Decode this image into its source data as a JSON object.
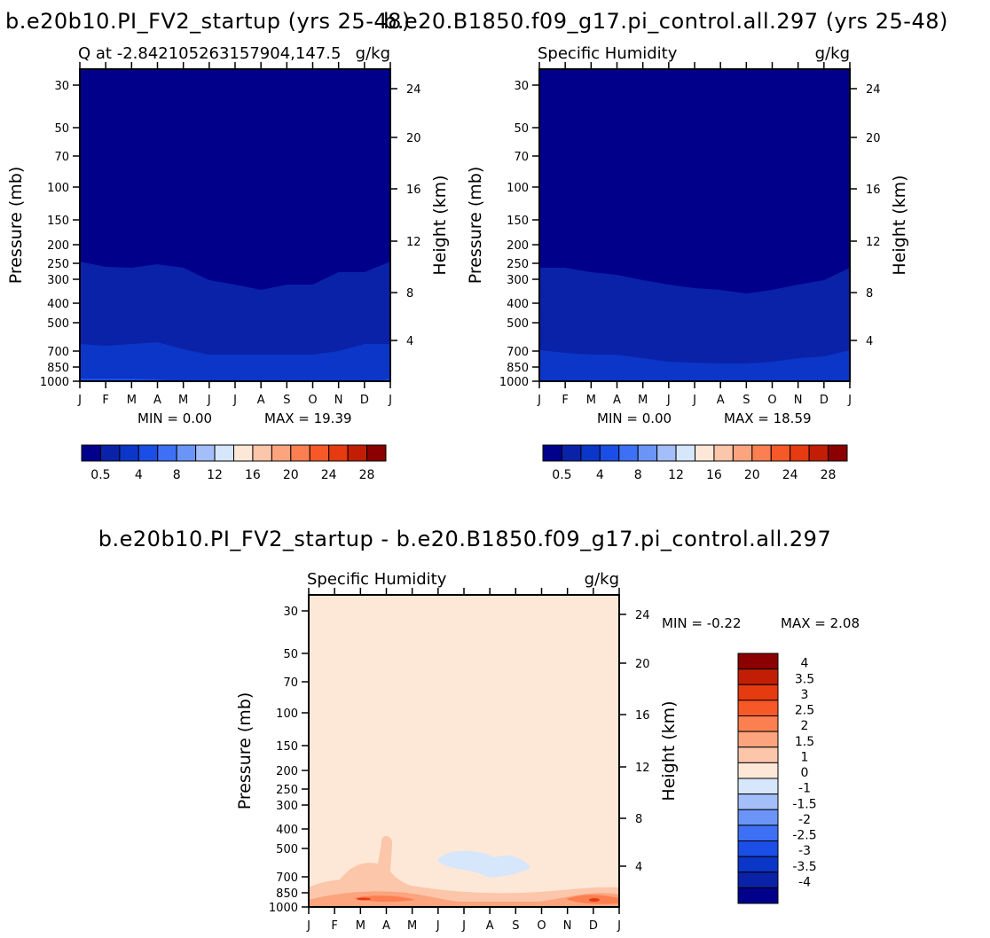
{
  "chart_data": [
    {
      "type": "contour",
      "figure_title": "b.e20b10.PI_FV2_startup (yrs 25-48)",
      "left_label": "Q at -2.842105263157904,147.5",
      "right_label": "g/kg",
      "ylabel": "Pressure (mb)",
      "ylabel_right": "Height (km)",
      "x_ticks": [
        "J",
        "F",
        "M",
        "A",
        "M",
        "J",
        "J",
        "A",
        "S",
        "O",
        "N",
        "D",
        "J"
      ],
      "y_ticks": [
        "30",
        "50",
        "70",
        "100",
        "150",
        "200",
        "250",
        "300",
        "400",
        "500",
        "700",
        "850",
        "1000"
      ],
      "y_ticks_right": [
        "24",
        "20",
        "16",
        "12",
        "8",
        "4"
      ],
      "min_text": "MIN =    0.00",
      "max_text": "MAX =   19.39",
      "colorbar_labels": [
        "0.5",
        "4",
        "8",
        "12",
        "16",
        "20",
        "24",
        "28"
      ],
      "colorbar_colors": [
        "#00008b",
        "#0a22a8",
        "#0b36c8",
        "#1b4ee6",
        "#3e70f5",
        "#6a95f7",
        "#a3bef8",
        "#d6e6fb",
        "#fde8d8",
        "#fcc6aa",
        "#fba47e",
        "#fb7f50",
        "#f75828",
        "#e63a10",
        "#c21e06",
        "#8b0000"
      ],
      "band_q": [
        0.5,
        1.5,
        2.5,
        4,
        6,
        8,
        10,
        12,
        14,
        16,
        18
      ],
      "band_top_y": [
        [
          295,
          301,
          302,
          298,
          302,
          316,
          321,
          327,
          321,
          321,
          307,
          307,
          295
        ],
        [
          388,
          390,
          388,
          386,
          394,
          400,
          400,
          400,
          400,
          400,
          396,
          388,
          388
        ],
        [
          427,
          427,
          427,
          428,
          431,
          437,
          436,
          438,
          438,
          438,
          436,
          433,
          427
        ],
        [
          477,
          477,
          474,
          470,
          483,
          491,
          493,
          495,
          495,
          495,
          491,
          483,
          477
        ],
        [
          514,
          512,
          511,
          506,
          523,
          527,
          531,
          532,
          532,
          532,
          526,
          518,
          514
        ],
        [
          558,
          558,
          555,
          553,
          567,
          575,
          578,
          580,
          580,
          580,
          574,
          562,
          558
        ],
        [
          603,
          601,
          599,
          599,
          612,
          618,
          620,
          620,
          620,
          620,
          614,
          606,
          603
        ],
        [
          646,
          645,
          644,
          643,
          650,
          656,
          658,
          658,
          658,
          658,
          654,
          648,
          646
        ],
        [
          695,
          695,
          695,
          695,
          698,
          700,
          701,
          701,
          701,
          700,
          698,
          696,
          695
        ],
        [
          723,
          722,
          721,
          721,
          722,
          723,
          724,
          724,
          724,
          724,
          723,
          723,
          723
        ],
        [
          745,
          745,
          745,
          745,
          745,
          745,
          746,
          746,
          746,
          745,
          745,
          745,
          745
        ]
      ]
    },
    {
      "type": "contour",
      "figure_title": "b.e20.B1850.f09_g17.pi_control.all.297 (yrs 25-48)",
      "left_label": "Specific Humidity",
      "right_label": "g/kg",
      "ylabel": "Pressure (mb)",
      "ylabel_right": "Height (km)",
      "x_ticks": [
        "J",
        "F",
        "M",
        "A",
        "M",
        "J",
        "J",
        "A",
        "S",
        "O",
        "N",
        "D",
        "J"
      ],
      "y_ticks": [
        "30",
        "50",
        "70",
        "100",
        "150",
        "200",
        "250",
        "300",
        "400",
        "500",
        "700",
        "850",
        "1000"
      ],
      "y_ticks_right": [
        "24",
        "20",
        "16",
        "12",
        "8",
        "4"
      ],
      "min_text": "MIN =    0.00",
      "max_text": "MAX =   18.59",
      "colorbar_labels": [
        "0.5",
        "4",
        "8",
        "12",
        "16",
        "20",
        "24",
        "28"
      ],
      "colorbar_colors": [
        "#00008b",
        "#0a22a8",
        "#0b36c8",
        "#1b4ee6",
        "#3e70f5",
        "#6a95f7",
        "#a3bef8",
        "#d6e6fb",
        "#fde8d8",
        "#fcc6aa",
        "#fba47e",
        "#fb7f50",
        "#f75828",
        "#e63a10",
        "#c21e06",
        "#8b0000"
      ],
      "band_q": [
        0.5,
        1.5,
        2.5,
        4,
        6,
        8,
        10,
        12,
        14,
        16,
        18
      ],
      "band_top_y": [
        [
          302,
          302,
          307,
          310,
          316,
          321,
          325,
          327,
          331,
          327,
          321,
          316,
          302
        ],
        [
          395,
          398,
          400,
          400,
          404,
          408,
          409,
          410,
          410,
          408,
          404,
          402,
          395
        ],
        [
          431,
          433,
          434,
          435,
          437,
          440,
          440,
          441,
          441,
          440,
          437,
          436,
          431
        ],
        [
          489,
          491,
          493,
          495,
          497,
          500,
          501,
          501,
          501,
          500,
          497,
          495,
          489
        ],
        [
          525,
          527,
          529,
          531,
          533,
          535,
          536,
          536,
          536,
          535,
          533,
          531,
          525
        ],
        [
          566,
          568,
          569,
          570,
          572,
          574,
          575,
          575,
          575,
          574,
          572,
          570,
          566
        ],
        [
          607,
          609,
          610,
          611,
          612,
          614,
          614,
          615,
          615,
          614,
          612,
          610,
          607
        ],
        [
          648,
          649,
          650,
          651,
          652,
          653,
          654,
          654,
          654,
          653,
          652,
          650,
          648
        ],
        [
          694,
          694,
          695,
          695,
          696,
          697,
          697,
          697,
          697,
          697,
          696,
          695,
          694
        ],
        [
          722,
          722,
          722,
          723,
          723,
          723,
          723,
          724,
          724,
          723,
          723,
          722,
          722
        ],
        [
          745,
          745,
          745,
          745,
          745,
          745,
          746,
          746,
          746,
          745,
          745,
          745,
          745
        ]
      ]
    },
    {
      "type": "contour",
      "figure_title": "b.e20b10.PI_FV2_startup - b.e20.B1850.f09_g17.pi_control.all.297",
      "left_label": "Specific Humidity",
      "right_label": "g/kg",
      "ylabel": "Pressure (mb)",
      "ylabel_right": "Height (km)",
      "x_ticks": [
        "J",
        "F",
        "M",
        "A",
        "M",
        "J",
        "J",
        "A",
        "S",
        "O",
        "N",
        "D",
        "J"
      ],
      "y_ticks": [
        "30",
        "50",
        "70",
        "100",
        "150",
        "200",
        "250",
        "300",
        "400",
        "500",
        "700",
        "850",
        "1000"
      ],
      "y_ticks_right": [
        "24",
        "20",
        "16",
        "12",
        "8",
        "4"
      ],
      "min_text": "MIN =   -0.22",
      "max_text": "MAX =    2.08",
      "colorbar_labels": [
        "4",
        "3.5",
        "3",
        "2.5",
        "2",
        "1.5",
        "1",
        "0",
        "-1",
        "-1.5",
        "-2",
        "-2.5",
        "-3",
        "-3.5",
        "-4"
      ],
      "colorbar_colors": [
        "#8b0000",
        "#c21e06",
        "#e63a10",
        "#f75828",
        "#fb7f50",
        "#fba47e",
        "#fcc6aa",
        "#fde8d8",
        "#d6e6fb",
        "#a3bef8",
        "#6a95f7",
        "#3e70f5",
        "#1b4ee6",
        "#0b36c8",
        "#0a22a8",
        "#00008b"
      ],
      "background_color": "#fde8d8"
    }
  ]
}
